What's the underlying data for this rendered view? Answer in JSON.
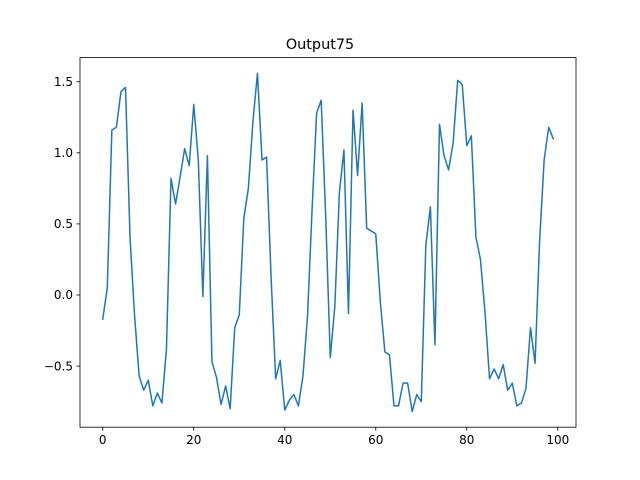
{
  "chart_data": {
    "type": "line",
    "title": "Output75",
    "xlabel": "",
    "ylabel": "",
    "xlim": [
      -5,
      104
    ],
    "ylim": [
      -0.93,
      1.67
    ],
    "x_ticks": [
      0,
      20,
      40,
      60,
      80,
      100
    ],
    "y_ticks": [
      -0.5,
      0.0,
      0.5,
      1.0,
      1.5
    ],
    "x_tick_labels": [
      "0",
      "20",
      "40",
      "60",
      "80",
      "100"
    ],
    "y_tick_labels": [
      "−0.5",
      "0.0",
      "0.5",
      "1.0",
      "1.5"
    ],
    "grid": false,
    "series": [
      {
        "color": "#1f77b4",
        "x": [
          0,
          1,
          2,
          3,
          4,
          5,
          6,
          7,
          8,
          9,
          10,
          11,
          12,
          13,
          14,
          15,
          16,
          17,
          18,
          19,
          20,
          21,
          22,
          23,
          24,
          25,
          26,
          27,
          28,
          29,
          30,
          31,
          32,
          33,
          34,
          35,
          36,
          37,
          38,
          39,
          40,
          41,
          42,
          43,
          44,
          45,
          46,
          47,
          48,
          49,
          50,
          51,
          52,
          53,
          54,
          55,
          56,
          57,
          58,
          59,
          60,
          61,
          62,
          63,
          64,
          65,
          66,
          67,
          68,
          69,
          70,
          71,
          72,
          73,
          74,
          75,
          76,
          77,
          78,
          79,
          80,
          81,
          82,
          83,
          84,
          85,
          86,
          87,
          88,
          89,
          90,
          91,
          92,
          93,
          94,
          95,
          96,
          97,
          98,
          99
        ],
        "y": [
          -0.17,
          0.05,
          1.16,
          1.18,
          1.43,
          1.46,
          0.4,
          -0.15,
          -0.57,
          -0.67,
          -0.6,
          -0.78,
          -0.69,
          -0.76,
          -0.38,
          0.82,
          0.64,
          0.83,
          1.03,
          0.91,
          1.34,
          0.95,
          -0.01,
          0.98,
          -0.47,
          -0.58,
          -0.77,
          -0.64,
          -0.8,
          -0.23,
          -0.14,
          0.54,
          0.75,
          1.22,
          1.56,
          0.95,
          0.97,
          0.12,
          -0.59,
          -0.46,
          -0.81,
          -0.74,
          -0.7,
          -0.78,
          -0.57,
          -0.15,
          0.6,
          1.28,
          1.37,
          0.55,
          -0.44,
          -0.08,
          0.72,
          1.02,
          -0.13,
          1.3,
          0.84,
          1.35,
          0.47,
          0.45,
          0.43,
          -0.05,
          -0.4,
          -0.42,
          -0.78,
          -0.78,
          -0.62,
          -0.62,
          -0.82,
          -0.7,
          -0.75,
          0.35,
          0.62,
          -0.35,
          1.2,
          0.98,
          0.88,
          1.07,
          1.51,
          1.48,
          1.05,
          1.12,
          0.41,
          0.25,
          -0.12,
          -0.59,
          -0.52,
          -0.59,
          -0.49,
          -0.67,
          -0.62,
          -0.78,
          -0.76,
          -0.66,
          -0.23,
          -0.48,
          0.38,
          0.95,
          1.18,
          1.1
        ]
      }
    ]
  }
}
